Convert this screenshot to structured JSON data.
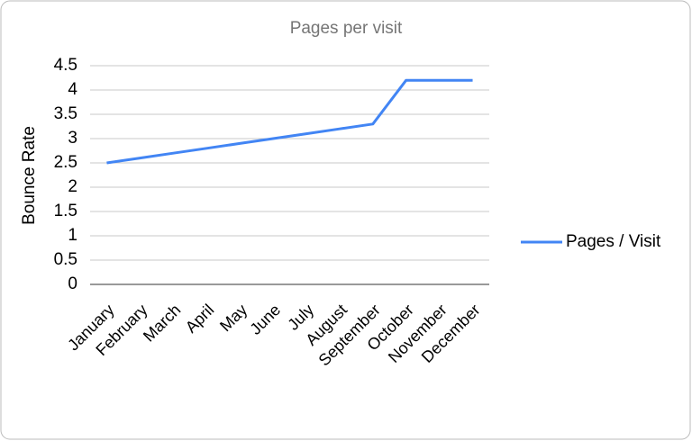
{
  "chart_data": {
    "type": "line",
    "title": "Pages per visit",
    "y_label": "Bounce Rate",
    "categories": [
      "January",
      "February",
      "March",
      "April",
      "May",
      "June",
      "July",
      "August",
      "September",
      "October",
      "November",
      "December"
    ],
    "series": [
      {
        "name": "Pages / Visit",
        "color": "#4285f4",
        "values": [
          2.5,
          2.6,
          2.7,
          2.8,
          2.9,
          3.0,
          3.1,
          3.2,
          3.3,
          4.2,
          4.2,
          4.2
        ]
      }
    ],
    "ylim": [
      0,
      4.5
    ],
    "yticks": [
      0,
      0.5,
      1,
      1.5,
      2,
      2.5,
      3,
      3.5,
      4,
      4.5
    ],
    "grid": true,
    "legend": "right"
  }
}
